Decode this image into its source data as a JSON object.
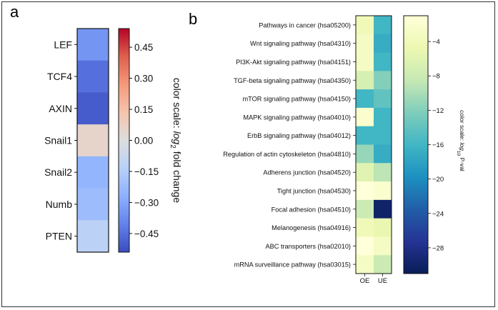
{
  "chart_data": [
    {
      "type": "heatmap",
      "panel_label": "a",
      "rows": [
        "LEF",
        "TCF4",
        "AXIN",
        "Snail1",
        "Snail2",
        "Numb",
        "PTEN"
      ],
      "values": [
        -0.35,
        -0.45,
        -0.5,
        0.05,
        -0.25,
        -0.22,
        -0.12
      ],
      "colorbar": {
        "label_prefix": "color scale: ",
        "label_math": "log",
        "label_sub": "2",
        "label_suffix": " fold change",
        "range": [
          -0.54,
          0.54
        ],
        "ticks": [
          0.45,
          0.3,
          0.15,
          0.0,
          -0.15,
          -0.3,
          -0.45
        ],
        "tick_labels": [
          "0.45",
          "0.30",
          "0.15",
          "0.00",
          "−0.15",
          "−0.30",
          "−0.45"
        ],
        "colormap": "coolwarm"
      }
    },
    {
      "type": "heatmap",
      "panel_label": "b",
      "rows": [
        "Pathways in cancer (hsa05200)",
        "Wnt signaling pathway (hsa04310)",
        "PI3K-Akt signaling pathway (hsa04151)",
        "TGF-beta signaling pathway (hsa04350)",
        "mTOR signaling pathway (hsa04150)",
        "MAPK signaling pathway (hsa04010)",
        "ErbB signaling pathway (hsa04012)",
        "Regulation of actin cytoskeleton (hsa04810)",
        "Adherens junction (hsa04520)",
        "Tight junction (hsa04530)",
        "Focal adhesion (hsa04510)",
        "Melanogenesis (hsa04916)",
        "ABC transporters (hsa02010)",
        "mRNA surveillance pathway (hsa03015)"
      ],
      "columns": [
        "OE",
        "UE"
      ],
      "values": [
        [
          -4,
          -16
        ],
        [
          -3,
          -17
        ],
        [
          -3,
          -16
        ],
        [
          -7,
          -12
        ],
        [
          -16,
          -14
        ],
        [
          -2,
          -16
        ],
        [
          -16,
          -16
        ],
        [
          -11,
          -17
        ],
        [
          -6,
          -9
        ],
        [
          -1,
          -2
        ],
        [
          -8,
          -30
        ],
        [
          -4,
          -5
        ],
        [
          -1,
          -3
        ],
        [
          -3,
          -8
        ]
      ],
      "colorbar": {
        "label_prefix": "color scale: ",
        "label_math": "log",
        "label_sub": "10",
        "label_suffix": " P-val",
        "range": [
          -31,
          -1
        ],
        "ticks": [
          -4,
          -8,
          -12,
          -16,
          -20,
          -24,
          -28
        ],
        "tick_labels": [
          "−4",
          "−8",
          "−12",
          "−16",
          "−20",
          "−24",
          "−28"
        ],
        "colormap": "YlGnBu"
      }
    }
  ]
}
